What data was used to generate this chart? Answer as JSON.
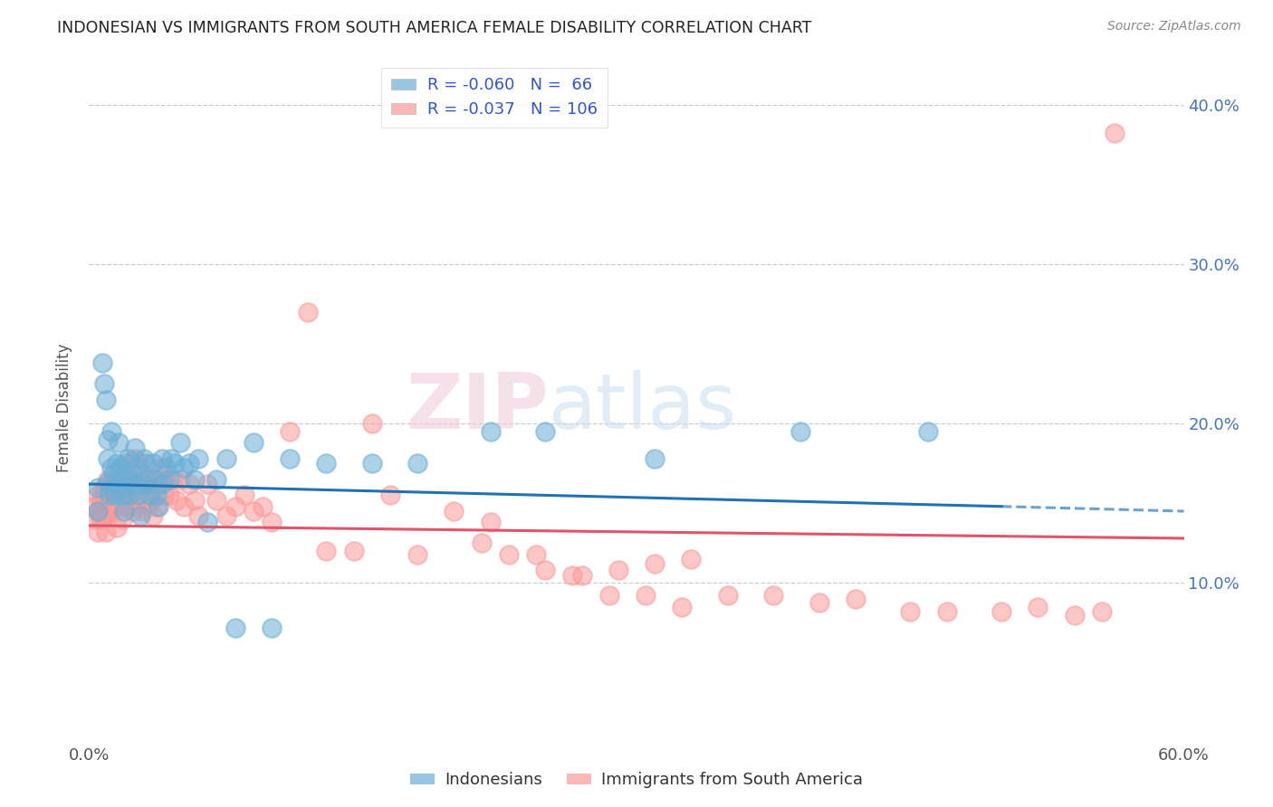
{
  "title": "INDONESIAN VS IMMIGRANTS FROM SOUTH AMERICA FEMALE DISABILITY CORRELATION CHART",
  "source": "Source: ZipAtlas.com",
  "ylabel": "Female Disability",
  "xlim": [
    0.0,
    0.6
  ],
  "ylim": [
    0.0,
    0.42
  ],
  "ytick_vals": [
    0.1,
    0.2,
    0.3,
    0.4
  ],
  "ytick_labels": [
    "10.0%",
    "20.0%",
    "30.0%",
    "40.0%"
  ],
  "xtick_vals": [
    0.0,
    0.1,
    0.2,
    0.3,
    0.4,
    0.5,
    0.6
  ],
  "xtick_labels": [
    "0.0%",
    "",
    "",
    "",
    "",
    "",
    "60.0%"
  ],
  "indonesian_color": "#6baed6",
  "sa_color": "#fb9a99",
  "trend_indo_color": "#2171b5",
  "trend_sa_color": "#e0556a",
  "background_color": "#ffffff",
  "grid_color": "#cccccc",
  "indonesian_R": -0.06,
  "indonesian_N": 66,
  "sa_R": -0.037,
  "sa_N": 106,
  "trend_indo_x0": 0.0,
  "trend_indo_x1": 0.5,
  "trend_indo_y0": 0.162,
  "trend_indo_y1": 0.148,
  "trend_indo_dash_x0": 0.5,
  "trend_indo_dash_x1": 0.6,
  "trend_indo_dash_y0": 0.148,
  "trend_indo_dash_y1": 0.145,
  "trend_sa_x0": 0.0,
  "trend_sa_x1": 0.6,
  "trend_sa_y0": 0.136,
  "trend_sa_y1": 0.128,
  "indonesian_x": [
    0.005,
    0.005,
    0.007,
    0.008,
    0.009,
    0.01,
    0.01,
    0.01,
    0.011,
    0.012,
    0.012,
    0.013,
    0.014,
    0.015,
    0.015,
    0.016,
    0.017,
    0.018,
    0.018,
    0.019,
    0.02,
    0.02,
    0.021,
    0.022,
    0.022,
    0.023,
    0.025,
    0.025,
    0.026,
    0.027,
    0.028,
    0.03,
    0.03,
    0.031,
    0.032,
    0.033,
    0.035,
    0.036,
    0.037,
    0.038,
    0.04,
    0.04,
    0.042,
    0.044,
    0.045,
    0.047,
    0.05,
    0.052,
    0.055,
    0.058,
    0.06,
    0.065,
    0.07,
    0.075,
    0.08,
    0.09,
    0.1,
    0.11,
    0.13,
    0.155,
    0.18,
    0.22,
    0.25,
    0.31,
    0.39,
    0.46
  ],
  "indonesian_y": [
    0.16,
    0.145,
    0.238,
    0.225,
    0.215,
    0.19,
    0.178,
    0.163,
    0.155,
    0.195,
    0.172,
    0.168,
    0.155,
    0.175,
    0.162,
    0.188,
    0.172,
    0.165,
    0.155,
    0.145,
    0.175,
    0.162,
    0.178,
    0.165,
    0.155,
    0.168,
    0.185,
    0.172,
    0.162,
    0.155,
    0.142,
    0.178,
    0.162,
    0.175,
    0.165,
    0.155,
    0.175,
    0.165,
    0.155,
    0.148,
    0.178,
    0.162,
    0.172,
    0.165,
    0.178,
    0.175,
    0.188,
    0.172,
    0.175,
    0.165,
    0.178,
    0.138,
    0.165,
    0.178,
    0.072,
    0.188,
    0.072,
    0.178,
    0.175,
    0.175,
    0.175,
    0.195,
    0.195,
    0.178,
    0.195,
    0.195
  ],
  "sa_x": [
    0.003,
    0.004,
    0.005,
    0.005,
    0.005,
    0.006,
    0.006,
    0.007,
    0.007,
    0.008,
    0.008,
    0.009,
    0.009,
    0.009,
    0.01,
    0.01,
    0.01,
    0.011,
    0.011,
    0.012,
    0.012,
    0.013,
    0.013,
    0.014,
    0.015,
    0.015,
    0.015,
    0.016,
    0.017,
    0.018,
    0.018,
    0.019,
    0.02,
    0.02,
    0.021,
    0.022,
    0.023,
    0.023,
    0.024,
    0.025,
    0.025,
    0.026,
    0.027,
    0.028,
    0.029,
    0.03,
    0.03,
    0.031,
    0.032,
    0.033,
    0.034,
    0.035,
    0.036,
    0.037,
    0.038,
    0.04,
    0.041,
    0.042,
    0.044,
    0.046,
    0.048,
    0.05,
    0.052,
    0.055,
    0.058,
    0.06,
    0.065,
    0.07,
    0.075,
    0.08,
    0.085,
    0.09,
    0.095,
    0.1,
    0.11,
    0.12,
    0.13,
    0.145,
    0.155,
    0.165,
    0.18,
    0.2,
    0.215,
    0.23,
    0.25,
    0.27,
    0.29,
    0.31,
    0.33,
    0.35,
    0.375,
    0.4,
    0.42,
    0.45,
    0.47,
    0.5,
    0.52,
    0.54,
    0.555,
    0.562,
    0.22,
    0.245,
    0.265,
    0.285,
    0.305,
    0.325
  ],
  "sa_y": [
    0.148,
    0.14,
    0.155,
    0.145,
    0.132,
    0.15,
    0.14,
    0.155,
    0.142,
    0.16,
    0.148,
    0.155,
    0.142,
    0.132,
    0.165,
    0.155,
    0.145,
    0.162,
    0.148,
    0.158,
    0.145,
    0.162,
    0.148,
    0.155,
    0.162,
    0.148,
    0.135,
    0.158,
    0.165,
    0.155,
    0.14,
    0.15,
    0.165,
    0.148,
    0.162,
    0.152,
    0.175,
    0.16,
    0.145,
    0.178,
    0.162,
    0.148,
    0.172,
    0.16,
    0.145,
    0.168,
    0.155,
    0.162,
    0.148,
    0.165,
    0.152,
    0.142,
    0.165,
    0.148,
    0.162,
    0.172,
    0.155,
    0.165,
    0.155,
    0.165,
    0.152,
    0.165,
    0.148,
    0.162,
    0.152,
    0.142,
    0.162,
    0.152,
    0.142,
    0.148,
    0.155,
    0.145,
    0.148,
    0.138,
    0.195,
    0.27,
    0.12,
    0.12,
    0.2,
    0.155,
    0.118,
    0.145,
    0.125,
    0.118,
    0.108,
    0.105,
    0.108,
    0.112,
    0.115,
    0.092,
    0.092,
    0.088,
    0.09,
    0.082,
    0.082,
    0.082,
    0.085,
    0.08,
    0.082,
    0.382,
    0.138,
    0.118,
    0.105,
    0.092,
    0.092,
    0.085
  ]
}
